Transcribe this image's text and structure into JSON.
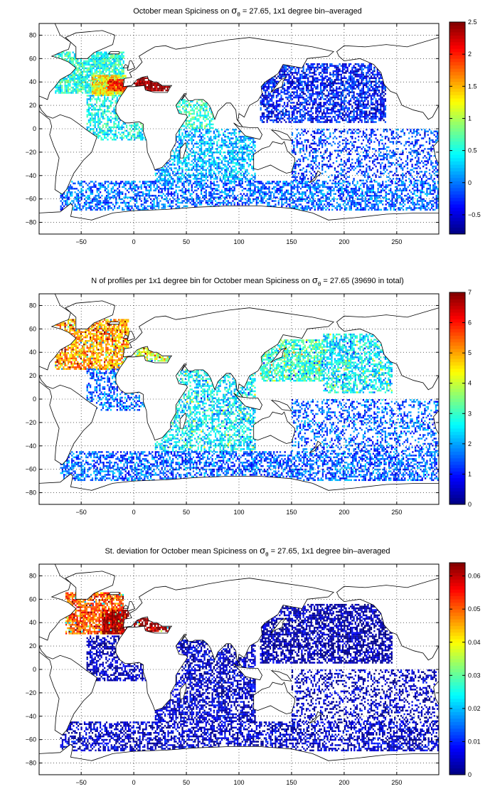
{
  "chart_data": [
    {
      "type": "heatmap",
      "title_parts": [
        "October mean Spiciness on ",
        "σ",
        "θ",
        " = 27.65, 1x1 degree bin–averaged"
      ],
      "xlabel": "",
      "ylabel": "",
      "xlim": [
        -90,
        290
      ],
      "ylim": [
        -90,
        90
      ],
      "xticks": [
        -50,
        0,
        50,
        100,
        150,
        200,
        250
      ],
      "yticks": [
        80,
        60,
        40,
        20,
        0,
        -20,
        -40,
        -60,
        -80
      ],
      "grid": true,
      "colormap": "jet",
      "colorbar": {
        "min": -0.8,
        "max": 2.5,
        "ticks": [
          2.5,
          2,
          1.5,
          1,
          0.5,
          0,
          -0.5
        ]
      },
      "regions": [
        {
          "name": "Northwest Atlantic",
          "lon": [
            -75,
            -10
          ],
          "lat": [
            30,
            65
          ],
          "value": 0.55,
          "density": 0.8
        },
        {
          "name": "Central North Atlantic",
          "lon": [
            -40,
            -8
          ],
          "lat": [
            28,
            45
          ],
          "value": 1.3,
          "density": 0.9
        },
        {
          "name": "Eastern North Atlantic near Gibraltar",
          "lon": [
            -25,
            -5
          ],
          "lat": [
            32,
            42
          ],
          "value": 2.0,
          "density": 0.9
        },
        {
          "name": "Mediterranean",
          "lon": [
            0,
            35
          ],
          "lat": [
            32,
            44
          ],
          "value": 2.5,
          "density": 0.9
        },
        {
          "name": "Tropical Atlantic",
          "lon": [
            -45,
            15
          ],
          "lat": [
            -10,
            28
          ],
          "value": 0.45,
          "density": 0.55
        },
        {
          "name": "Arabian Sea and Red Sea outflow",
          "lon": [
            40,
            75
          ],
          "lat": [
            0,
            25
          ],
          "value": 0.6,
          "density": 0.55
        },
        {
          "name": "Indian Ocean",
          "lon": [
            20,
            115
          ],
          "lat": [
            -45,
            0
          ],
          "value": 0.2,
          "density": 0.55
        },
        {
          "name": "North Pacific",
          "lon": [
            120,
            240
          ],
          "lat": [
            5,
            55
          ],
          "value": -0.35,
          "density": 0.65
        },
        {
          "name": "South Pacific",
          "lon": [
            150,
            290
          ],
          "lat": [
            -45,
            0
          ],
          "value": -0.2,
          "density": 0.35
        },
        {
          "name": "Southern Ocean",
          "lon": [
            -70,
            290
          ],
          "lat": [
            -70,
            -45
          ],
          "value": -0.05,
          "density": 0.55
        }
      ]
    },
    {
      "type": "heatmap",
      "title_parts": [
        "N of profiles per 1x1 degree bin for October mean Spiciness on ",
        "σ",
        "θ",
        " = 27.65 (39690 in total)"
      ],
      "xlabel": "",
      "ylabel": "",
      "xlim": [
        -90,
        290
      ],
      "ylim": [
        -90,
        90
      ],
      "xticks": [
        -50,
        0,
        50,
        100,
        150,
        200,
        250
      ],
      "yticks": [
        80,
        60,
        40,
        20,
        0,
        -20,
        -40,
        -60,
        -80
      ],
      "grid": true,
      "colormap": "jet",
      "colorbar": {
        "min": 0,
        "max": 7,
        "ticks": [
          7,
          6,
          5,
          4,
          3,
          2,
          1,
          0
        ]
      },
      "total_profiles": 39690,
      "regions": [
        {
          "name": "North Atlantic",
          "lon": [
            -75,
            -5
          ],
          "lat": [
            25,
            68
          ],
          "value": 5.0,
          "density": 0.75
        },
        {
          "name": "Mediterranean",
          "lon": [
            0,
            35
          ],
          "lat": [
            32,
            44
          ],
          "value": 4.0,
          "density": 0.7
        },
        {
          "name": "Tropical Atlantic",
          "lon": [
            -45,
            15
          ],
          "lat": [
            -10,
            25
          ],
          "value": 1.5,
          "density": 0.45
        },
        {
          "name": "Indian Ocean",
          "lon": [
            20,
            115
          ],
          "lat": [
            -45,
            25
          ],
          "value": 2.5,
          "density": 0.55
        },
        {
          "name": "Northwest Pacific",
          "lon": [
            120,
            180
          ],
          "lat": [
            15,
            50
          ],
          "value": 3.0,
          "density": 0.7
        },
        {
          "name": "Northeast Pacific",
          "lon": [
            180,
            245
          ],
          "lat": [
            5,
            55
          ],
          "value": 2.5,
          "density": 0.6
        },
        {
          "name": "South Pacific",
          "lon": [
            150,
            290
          ],
          "lat": [
            -45,
            0
          ],
          "value": 1.5,
          "density": 0.35
        },
        {
          "name": "Southern Ocean",
          "lon": [
            -70,
            290
          ],
          "lat": [
            -70,
            -45
          ],
          "value": 1.5,
          "density": 0.55
        }
      ]
    },
    {
      "type": "heatmap",
      "title_parts": [
        "St. deviation for October mean Spiciness on ",
        "σ",
        "θ",
        " = 27.65, 1x1 degree bin–averaged"
      ],
      "xlabel": "",
      "ylabel": "",
      "xlim": [
        -90,
        290
      ],
      "ylim": [
        -90,
        90
      ],
      "xticks": [
        -50,
        0,
        50,
        100,
        150,
        200,
        250
      ],
      "yticks": [
        80,
        60,
        40,
        20,
        0,
        -20,
        -40,
        -60,
        -80
      ],
      "grid": true,
      "colormap": "jet",
      "colorbar": {
        "min": 0,
        "max": 0.064,
        "ticks": [
          0.06,
          0.05,
          0.04,
          0.03,
          0.02,
          0.01,
          0
        ]
      },
      "regions": [
        {
          "name": "North Atlantic",
          "lon": [
            -65,
            -10
          ],
          "lat": [
            30,
            65
          ],
          "value": 0.05,
          "density": 0.8
        },
        {
          "name": "Eastern North Atlantic",
          "lon": [
            -30,
            -5
          ],
          "lat": [
            30,
            50
          ],
          "value": 0.062,
          "density": 0.9
        },
        {
          "name": "Mediterranean",
          "lon": [
            0,
            35
          ],
          "lat": [
            32,
            44
          ],
          "value": 0.064,
          "density": 0.8
        },
        {
          "name": "Tropical Atlantic",
          "lon": [
            -45,
            15
          ],
          "lat": [
            -10,
            28
          ],
          "value": 0.003,
          "density": 0.55
        },
        {
          "name": "Indian Ocean",
          "lon": [
            20,
            115
          ],
          "lat": [
            -45,
            25
          ],
          "value": 0.004,
          "density": 0.6
        },
        {
          "name": "North Pacific",
          "lon": [
            120,
            245
          ],
          "lat": [
            5,
            55
          ],
          "value": 0.002,
          "density": 0.65
        },
        {
          "name": "South Pacific",
          "lon": [
            150,
            290
          ],
          "lat": [
            -45,
            0
          ],
          "value": 0.003,
          "density": 0.35
        },
        {
          "name": "Southern Ocean",
          "lon": [
            -70,
            290
          ],
          "lat": [
            -70,
            -45
          ],
          "value": 0.004,
          "density": 0.55
        }
      ]
    }
  ]
}
